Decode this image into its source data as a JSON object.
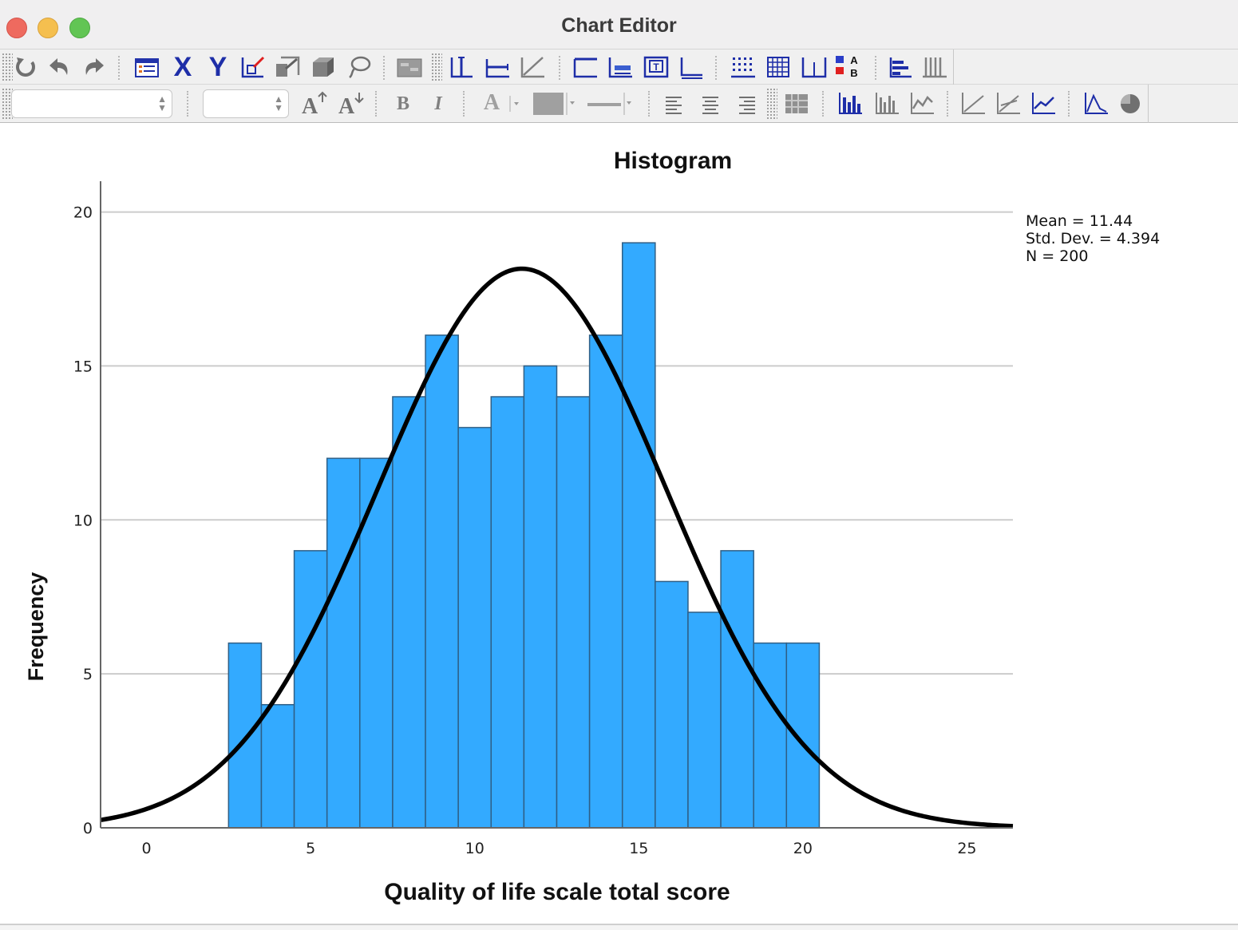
{
  "window": {
    "title": "Chart Editor"
  },
  "toolbar1": {
    "icons": [
      "rotate-icon",
      "undo-icon",
      "redo-icon",
      "properties-icon",
      "x-axis-icon",
      "y-axis-icon",
      "select-chart-icon",
      "transpose-icon",
      "3d-icon",
      "lasso-icon",
      "data-view-icon",
      "reference-line-y-icon",
      "reference-line-x-icon",
      "fit-line-icon",
      "title-icon",
      "footnote-icon",
      "text-box-icon",
      "interpolation-icon",
      "grid-icon",
      "table-grid-icon",
      "annotation-icon",
      "legend-icon",
      "data-label-icon",
      "bar-chart-icon"
    ],
    "x_label": "X",
    "y_label": "Y"
  },
  "toolbar2": {
    "font_name_value": "",
    "font_size_value": "",
    "bold_label": "B",
    "italic_label": "I",
    "text_color_label": "A",
    "icons": [
      "increase-font-icon",
      "decrease-font-icon",
      "fill-color-icon",
      "line-style-icon",
      "align-left-icon",
      "align-center-icon",
      "align-right-icon",
      "grid-toggle-icon",
      "bar-icon",
      "cluster-bar-icon",
      "line-icon",
      "scatter-icon",
      "scatter-fit-icon",
      "line-chart-icon",
      "area-icon",
      "pie-icon"
    ]
  },
  "chart_data": {
    "type": "bar",
    "title": "Histogram",
    "xlabel": "Quality of life scale total score",
    "ylabel": "Frequency",
    "bin_centers": [
      3,
      4,
      5,
      6,
      7,
      8,
      9,
      10,
      11,
      12,
      13,
      14,
      15,
      16,
      17,
      18,
      19,
      20
    ],
    "values": [
      6,
      4,
      9,
      12,
      12,
      14,
      16,
      13,
      14,
      15,
      14,
      16,
      19,
      8,
      7,
      9,
      6,
      6
    ],
    "xlim": [
      -1.4,
      26.4
    ],
    "ylim": [
      0,
      21
    ],
    "xticks": [
      "0",
      "5",
      "10",
      "15",
      "20",
      "25"
    ],
    "yticks": [
      "0",
      "5",
      "10",
      "15",
      "20"
    ],
    "grid": true,
    "normal_curve": {
      "mean": 11.44,
      "sd": 4.394,
      "n": 200,
      "bin_width": 1
    },
    "stats_box": [
      "Mean = 11.44",
      "Std. Dev. = 4.394",
      "N = 200"
    ],
    "bar_color": "#33aaff",
    "bar_edge_color": "#2f5f86",
    "curve_color": "#000000"
  }
}
